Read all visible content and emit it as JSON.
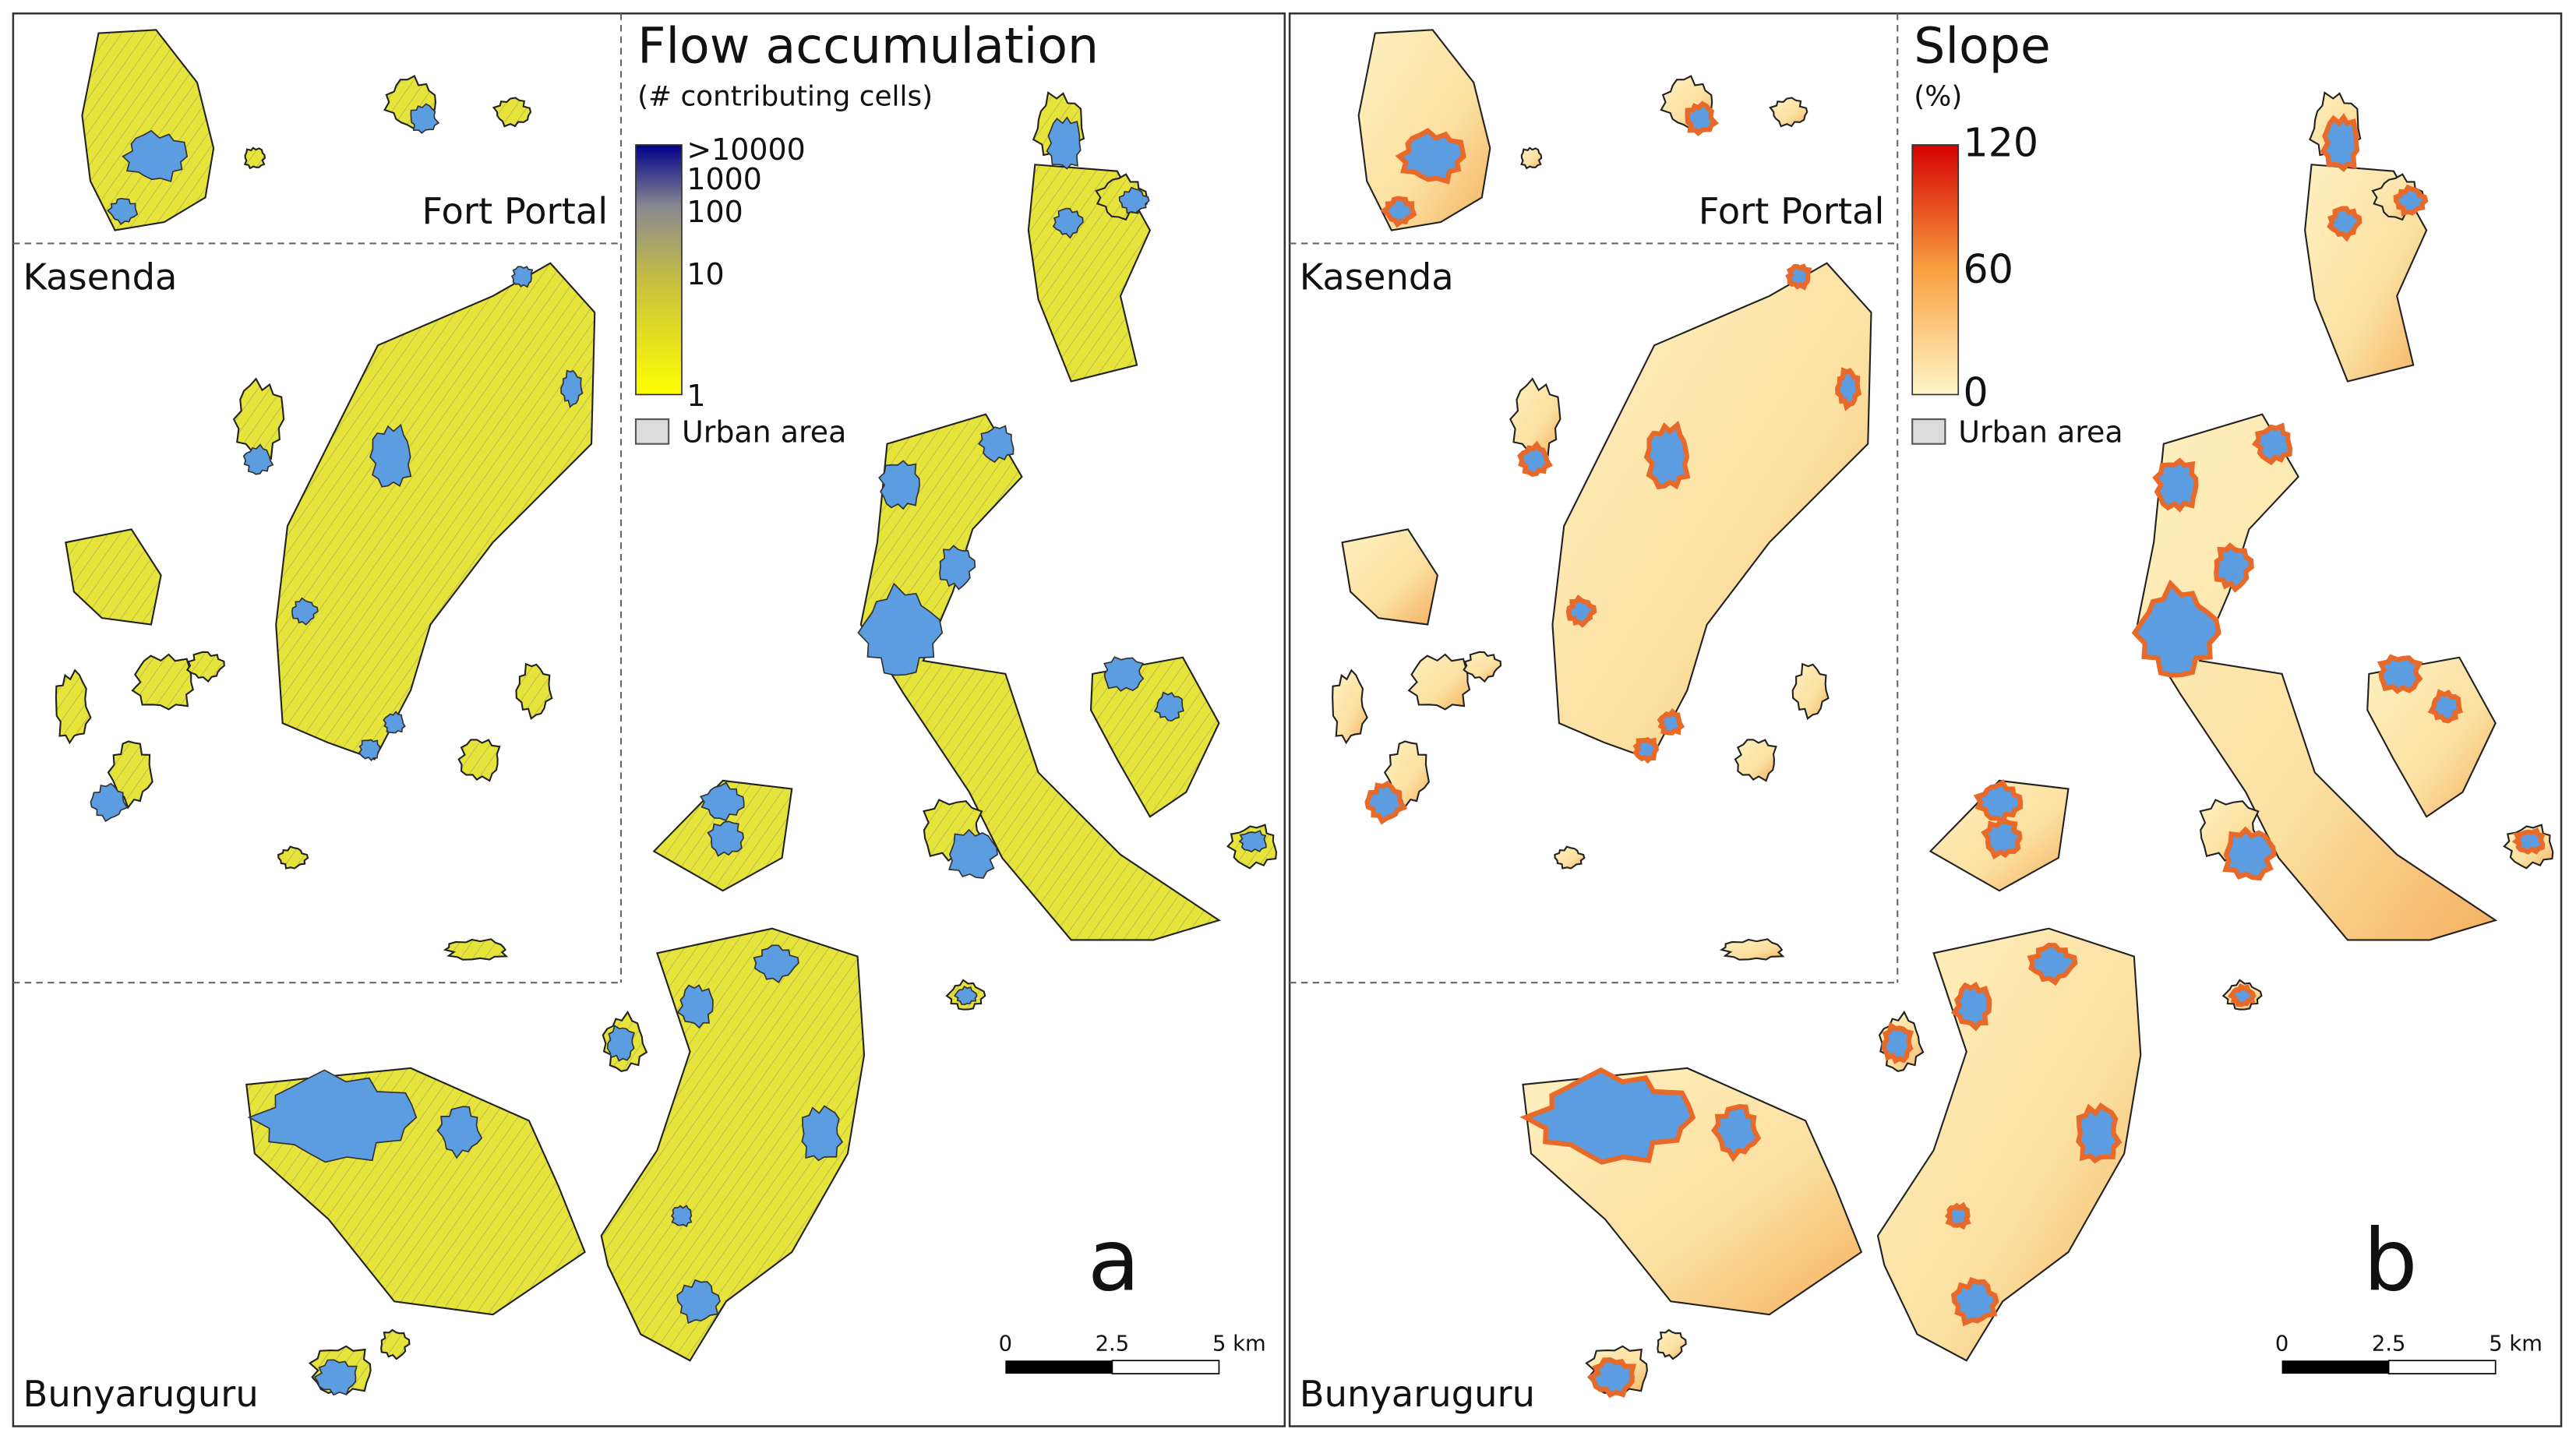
{
  "panels": [
    {
      "title": "Flow accumulation",
      "subtitle": "(# contributing cells)",
      "legend": {
        "ticks": [
          ">10000",
          "1000",
          "100",
          "10",
          "1"
        ],
        "urban": "Urban area"
      },
      "regions": [
        "Fort Portal",
        "Kasenda",
        "Bunyaruguru"
      ],
      "letter": "a",
      "scale_bar": [
        "0",
        "2.5",
        "5 km"
      ]
    },
    {
      "title": "Slope",
      "subtitle": "(%)",
      "legend": {
        "ticks": [
          "120",
          "60",
          "0"
        ],
        "urban": "Urban area"
      },
      "regions": [
        "Fort Portal",
        "Kasenda",
        "Bunyaruguru"
      ],
      "letter": "b",
      "scale_bar": [
        "0",
        "2.5",
        "5 km"
      ]
    }
  ]
}
